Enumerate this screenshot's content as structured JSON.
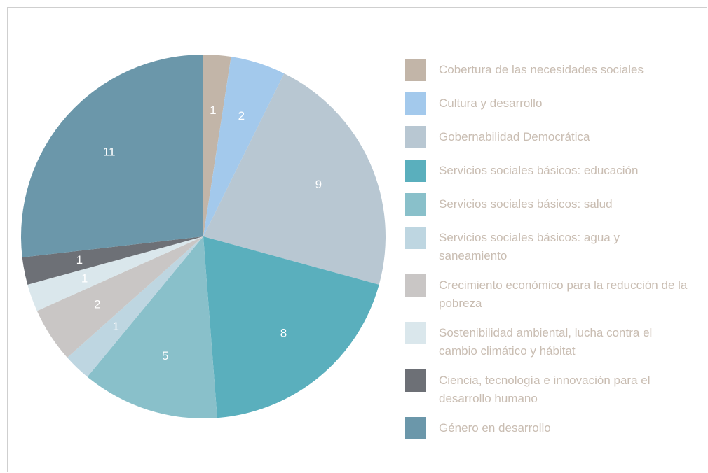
{
  "chart_data": {
    "type": "pie",
    "categories": [
      "Cobertura de las necesidades sociales",
      "Cultura y desarrollo",
      "Gobernabilidad Democrática",
      "Servicios sociales básicos: educación",
      "Servicios sociales básicos: salud",
      "Servicios sociales básicos: agua y saneamiento",
      "Crecimiento económico para la reducción de la pobreza",
      "Sostenibilidad ambiental, lucha contra el cambio climático y hábitat",
      "Ciencia, tecnología e innovación para el desarrollo humano",
      "Género en desarrollo"
    ],
    "values": [
      1,
      2,
      9,
      8,
      5,
      1,
      2,
      1,
      1,
      11
    ],
    "slice_order": [
      0,
      1,
      2,
      3,
      4,
      5,
      6,
      7,
      8,
      9
    ],
    "start": "12 o'clock",
    "direction": "clockwise",
    "legend_position": "right",
    "title": "",
    "colors": [
      "#c2b5a8",
      "#a3c9ec",
      "#b8c7d2",
      "#5aafbd",
      "#89c0ca",
      "#bed6e1",
      "#c9c6c5",
      "#dae7ec",
      "#6d7076",
      "#6b97aa"
    ],
    "label_color": "#ffffff",
    "legend_text_color": "#c9bdb2"
  }
}
